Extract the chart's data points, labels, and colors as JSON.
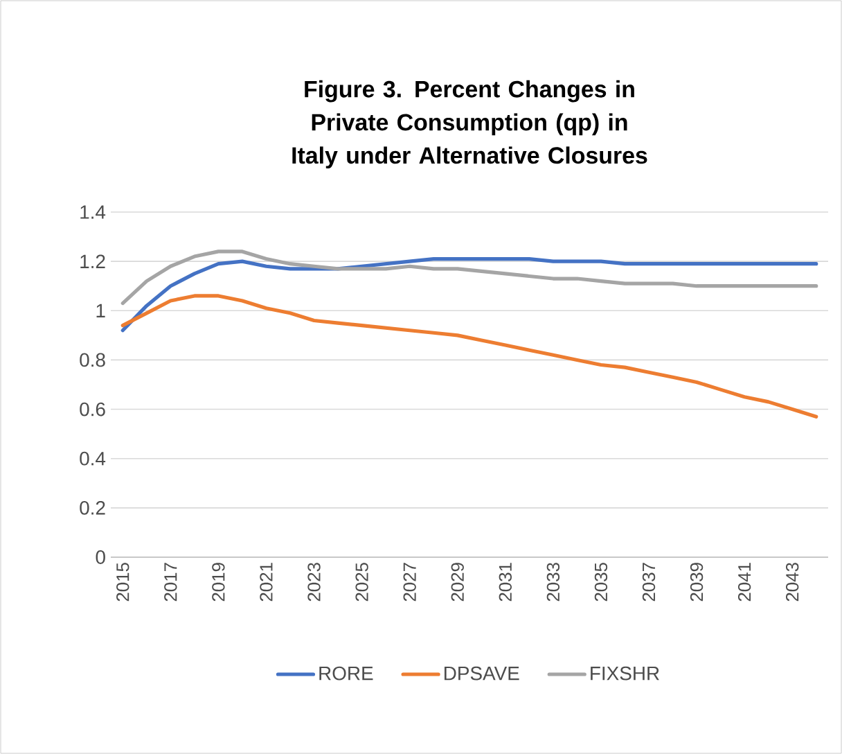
{
  "chart_data": {
    "type": "line",
    "title": "Figure 3. Percent Changes in Private Consumption (qp) in Italy under Alternative Closures",
    "categories": [
      "2015",
      null,
      "2017",
      null,
      "2019",
      null,
      "2021",
      null,
      "2023",
      null,
      "2025",
      null,
      "2027",
      null,
      "2029",
      null,
      "2031",
      null,
      "2033",
      null,
      "2035",
      null,
      "2037",
      null,
      "2039",
      null,
      "2041",
      null,
      "2043",
      null
    ],
    "series": [
      {
        "name": "RORE",
        "color": "#4472c4",
        "values": [
          0.92,
          1.02,
          1.1,
          1.15,
          1.19,
          1.2,
          1.18,
          1.17,
          1.17,
          1.17,
          1.18,
          1.19,
          1.2,
          1.21,
          1.21,
          1.21,
          1.21,
          1.21,
          1.2,
          1.2,
          1.2,
          1.19,
          1.19,
          1.19,
          1.19,
          1.19,
          1.19,
          1.19,
          1.19,
          1.19
        ]
      },
      {
        "name": "DPSAVE",
        "color": "#ed7d31",
        "values": [
          0.94,
          0.99,
          1.04,
          1.06,
          1.06,
          1.04,
          1.01,
          0.99,
          0.96,
          0.95,
          0.94,
          0.93,
          0.92,
          0.91,
          0.9,
          0.88,
          0.86,
          0.84,
          0.82,
          0.8,
          0.78,
          0.77,
          0.75,
          0.73,
          0.71,
          0.68,
          0.65,
          0.63,
          0.6,
          0.57
        ]
      },
      {
        "name": "FIXSHR",
        "color": "#a5a5a5",
        "values": [
          1.03,
          1.12,
          1.18,
          1.22,
          1.24,
          1.24,
          1.21,
          1.19,
          1.18,
          1.17,
          1.17,
          1.17,
          1.18,
          1.17,
          1.17,
          1.16,
          1.15,
          1.14,
          1.13,
          1.13,
          1.12,
          1.11,
          1.11,
          1.11,
          1.1,
          1.1,
          1.1,
          1.1,
          1.1,
          1.1
        ]
      }
    ],
    "ylim": [
      0,
      1.4
    ],
    "yticks": [
      0,
      0.2,
      0.4,
      0.6,
      0.8,
      1,
      1.2,
      1.4
    ],
    "grid": "y",
    "legend": "bottom",
    "marker": "none",
    "line_style": "solid"
  }
}
